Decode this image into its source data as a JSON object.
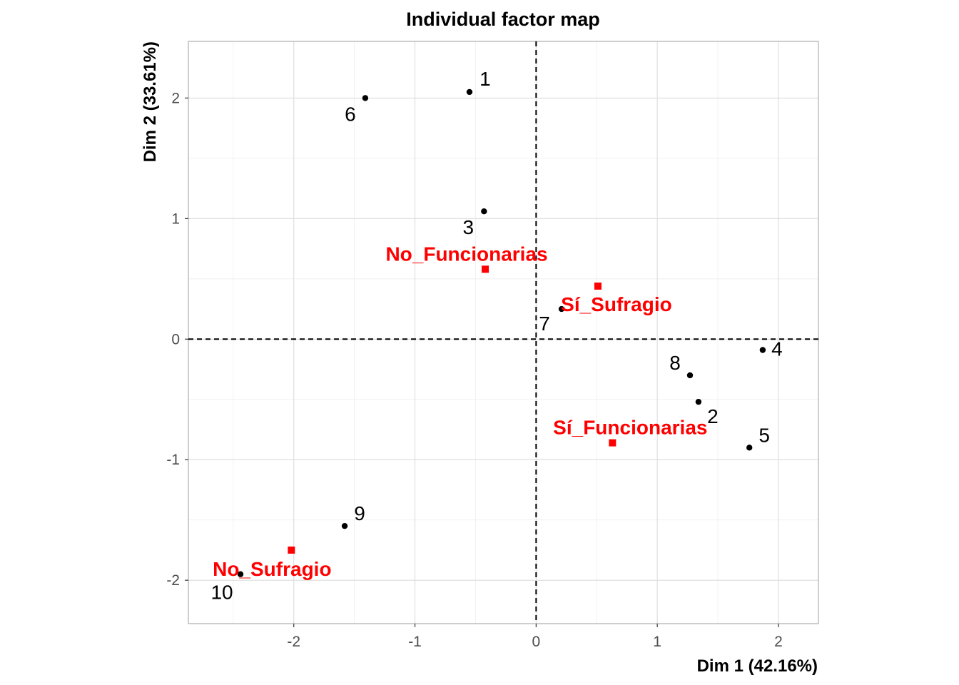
{
  "chart_data": {
    "type": "scatter",
    "title": "Individual factor map",
    "xlabel": "Dim 1 (42.16%)",
    "ylabel": "Dim 2 (33.61%)",
    "xlim": [
      -2.87,
      2.33
    ],
    "ylim": [
      -2.36,
      2.47
    ],
    "xticks": [
      -2,
      -1,
      0,
      1,
      2
    ],
    "yticks": [
      -2,
      -1,
      0,
      1,
      2
    ],
    "xtick_labels": [
      "-2",
      "-1",
      "0",
      "1",
      "2"
    ],
    "ytick_labels": [
      "-2",
      "-1",
      "0",
      "1",
      "2"
    ],
    "reference_lines": {
      "x": 0,
      "y": 0,
      "style": "dashed"
    },
    "grid": true,
    "series": [
      {
        "marker": "circle",
        "color": "#000000",
        "points": [
          {
            "label": "1",
            "x": -0.55,
            "y": 2.05
          },
          {
            "label": "2",
            "x": 1.34,
            "y": -0.52
          },
          {
            "label": "3",
            "x": -0.43,
            "y": 1.06
          },
          {
            "label": "4",
            "x": 1.87,
            "y": -0.09
          },
          {
            "label": "5",
            "x": 1.76,
            "y": -0.9
          },
          {
            "label": "6",
            "x": -1.41,
            "y": 2.0
          },
          {
            "label": "7",
            "x": 0.21,
            "y": 0.25
          },
          {
            "label": "8",
            "x": 1.27,
            "y": -0.3
          },
          {
            "label": "9",
            "x": -1.58,
            "y": -1.55
          },
          {
            "label": "10",
            "x": -2.44,
            "y": -1.95
          }
        ]
      },
      {
        "marker": "square",
        "color": "#ff0000",
        "points": [
          {
            "label": "No_Funcionarias",
            "x": -0.42,
            "y": 0.58
          },
          {
            "label": "Sí_Sufragio",
            "x": 0.51,
            "y": 0.44
          },
          {
            "label": "Sí_Funcionarias",
            "x": 0.63,
            "y": -0.86
          },
          {
            "label": "No_Sufragio",
            "x": -2.02,
            "y": -1.75
          }
        ]
      }
    ]
  }
}
